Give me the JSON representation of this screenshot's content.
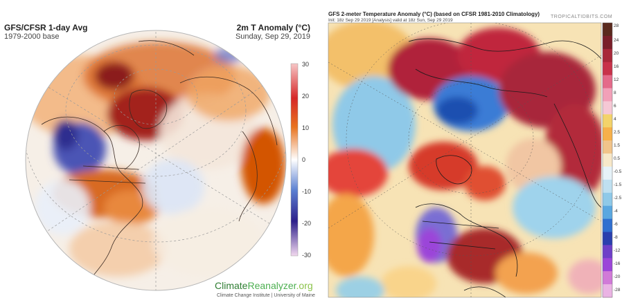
{
  "left_map": {
    "title": "GFS/CFSR 1-day Avg",
    "subtitle": "1979-2000 base",
    "variable": "2m T Anomaly (°C)",
    "date": "Sunday, Sep 29, 2019",
    "colorbar_ticks": [
      "30",
      "20",
      "10",
      "0",
      "-10",
      "-20",
      "-30"
    ],
    "logo_climate": "Climate",
    "logo_reanalyzer": "Reanalyzer",
    "logo_org": ".org",
    "credit": "Climate Change Institute | University of Maine"
  },
  "right_map": {
    "title": "GFS 2-meter Temperature Anomaly (°C) (based on CFSR 1981-2010 Climatology)",
    "init_line": "Init: 18z Sep 29 2019   [Analysis]   valid at 18z Sun, Sep 29 2019",
    "brand": "TROPICALTIDBITS.COM",
    "colorbar_ticks": [
      "28",
      "24",
      "20",
      "16",
      "12",
      "8",
      "6",
      "4",
      "2.5",
      "1.5",
      "0.5",
      "-0.5",
      "-1.5",
      "-2.5",
      "-4",
      "-6",
      "-8",
      "-12",
      "-16",
      "-20",
      "-28"
    ]
  },
  "colors": {
    "warm_dark": "#8b1a1a",
    "warm": "#d35400",
    "cold": "#3f3fa8",
    "purple": "#9b45d9",
    "neutral": "#f5efe6"
  }
}
